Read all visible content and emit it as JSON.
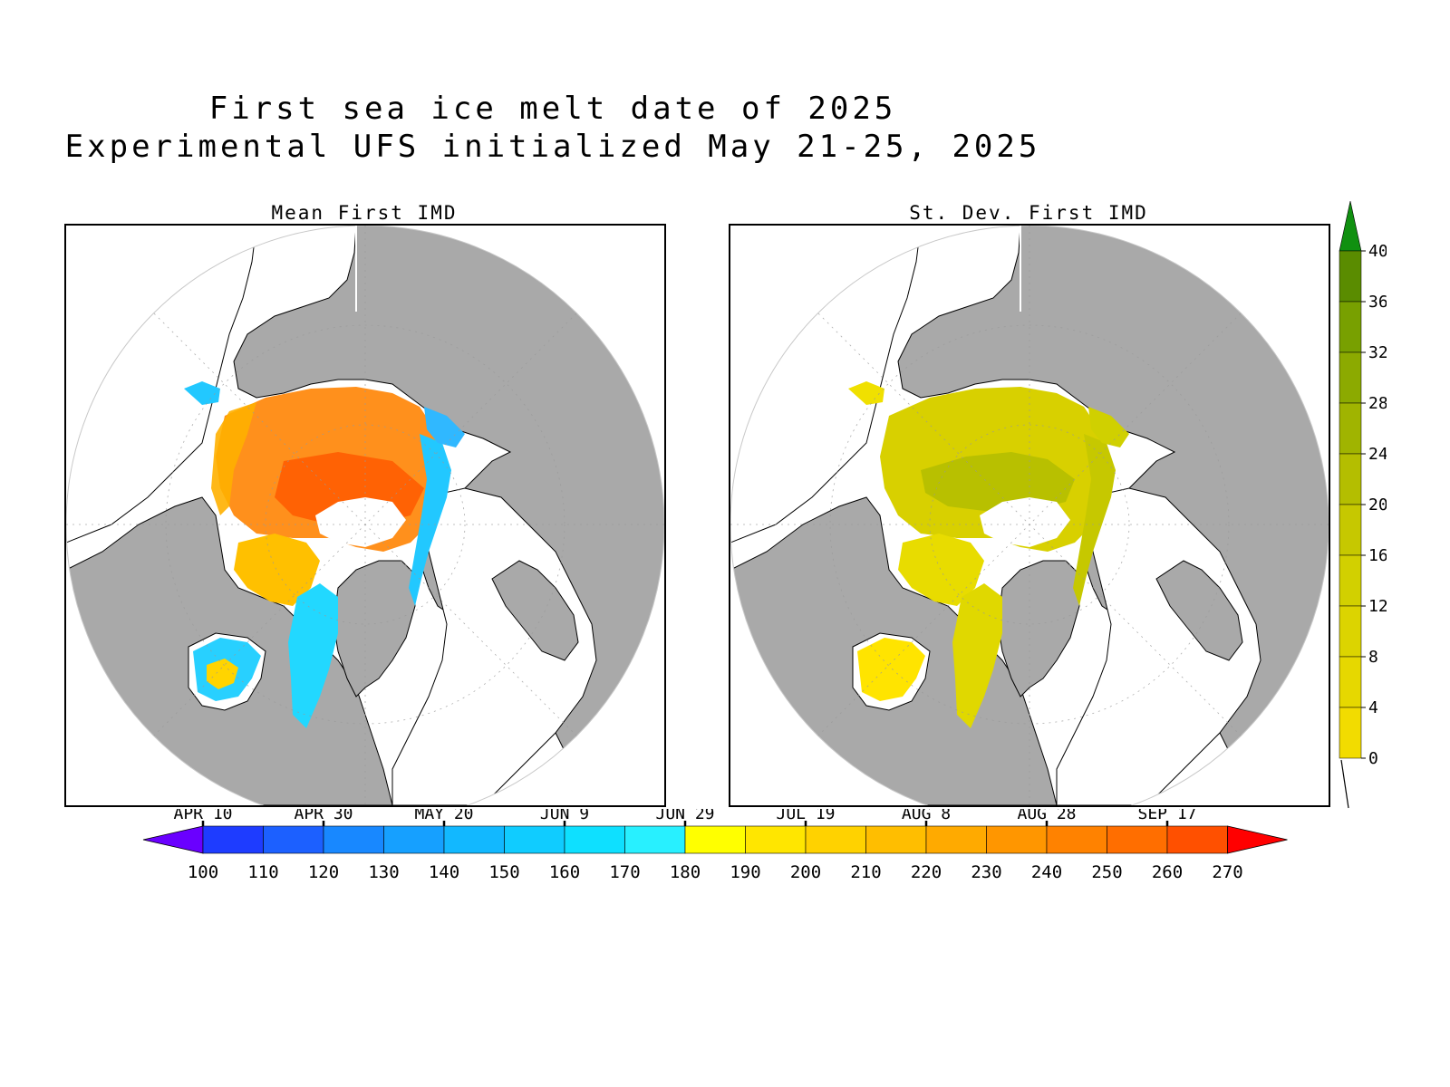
{
  "title": {
    "line1": "First sea ice melt date of 2025",
    "line2": "Experimental UFS initialized May 21-25, 2025"
  },
  "panels": [
    {
      "id": "left",
      "title": "Mean First IMD"
    },
    {
      "id": "right",
      "title": "St. Dev. First IMD"
    }
  ],
  "colors": {
    "land": "#a9a9a9",
    "ocean": "#ffffff",
    "coast": "#000000"
  },
  "colorbar_bottom": {
    "date_labels": [
      "APR 10",
      "APR 30",
      "MAY 20",
      "JUN 9",
      "JUN 29",
      "JUL 19",
      "AUG 8",
      "AUG 28",
      "SEP 17"
    ],
    "value_labels": [
      "100",
      "110",
      "120",
      "130",
      "140",
      "150",
      "160",
      "170",
      "180",
      "190",
      "200",
      "210",
      "220",
      "230",
      "240",
      "250",
      "260",
      "270"
    ],
    "colors": [
      "#1e3cff",
      "#1c60ff",
      "#1888ff",
      "#16a0ff",
      "#12b8ff",
      "#10ccff",
      "#0ee0ff",
      "#28f0ff",
      "#ffff00",
      "#ffe600",
      "#ffd200",
      "#ffbe00",
      "#ffaa00",
      "#ff9600",
      "#ff8200",
      "#ff6e00",
      "#ff5000"
    ],
    "under_color": "#6a00ff",
    "over_color": "#ff0000"
  },
  "colorbar_right": {
    "labels": [
      "0",
      "4",
      "8",
      "12",
      "16",
      "20",
      "24",
      "28",
      "32",
      "36",
      "40"
    ],
    "colors": [
      "#ffe600",
      "#f2dc00",
      "#e6d800",
      "#dcd400",
      "#d2d000",
      "#c6c800",
      "#b4be00",
      "#a0b400",
      "#8caa00",
      "#78a000",
      "#5a8c00"
    ],
    "over_color": "#109010"
  }
}
